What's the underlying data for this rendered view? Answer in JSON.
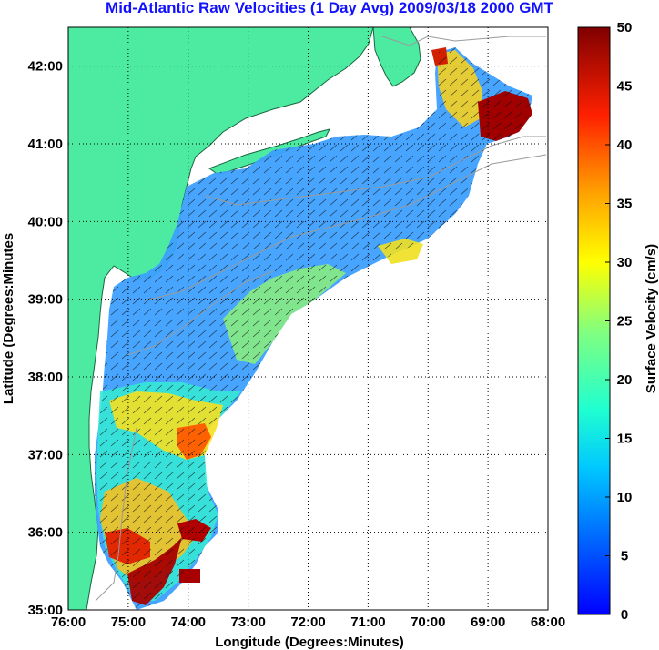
{
  "title": "Mid-Atlantic Raw Velocities (1 Day Avg) 2009/03/18 2000 GMT",
  "map": {
    "xlabel": "Longitude (Degrees:Minutes)",
    "ylabel": "Latitude (Degrees:Minutes",
    "lon_ticks": [
      "76:00",
      "75:00",
      "74:00",
      "73:00",
      "72:00",
      "71:00",
      "70:00",
      "69:00",
      "68:00"
    ],
    "lat_ticks": [
      "42:00",
      "41:00",
      "40:00",
      "39:00",
      "38:00",
      "37:00",
      "36:00",
      "35:00"
    ],
    "lon_range": [
      -76,
      -68
    ],
    "lat_range": [
      35,
      42.5
    ],
    "grid": "dotted",
    "land_color": "#4deba1",
    "bathymetry_color": "#9a9a9a"
  },
  "colorbar": {
    "label": "Surface Velocity (cm/s)",
    "ticks": [
      "50",
      "45",
      "40",
      "35",
      "30",
      "25",
      "20",
      "15",
      "10",
      "5",
      "0"
    ],
    "range": [
      0,
      50
    ],
    "colormap": "jet"
  }
}
